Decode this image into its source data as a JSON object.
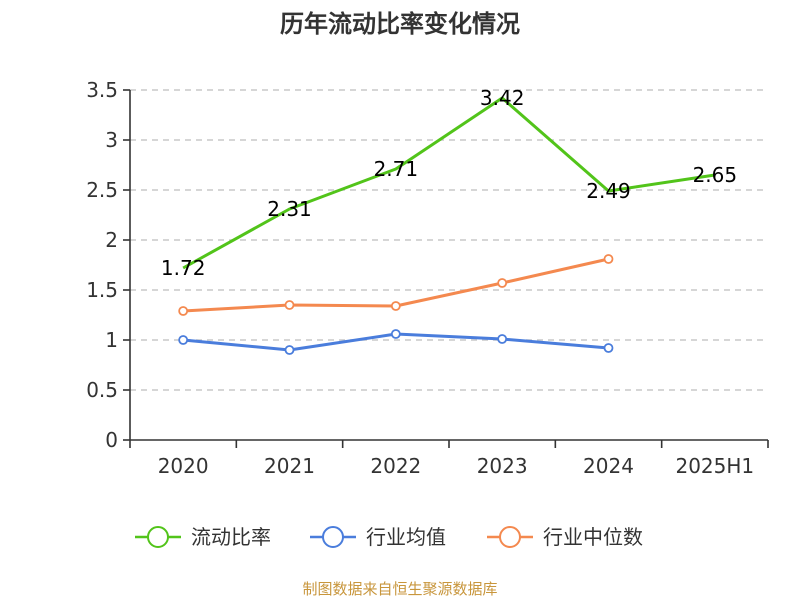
{
  "colors": {
    "current_ratio": "#52c41a",
    "industry_average": "#4a7ddc",
    "industry_median": "#f4894f",
    "source_text": "#c8963c"
  },
  "chart_data": {
    "type": "line",
    "title": "历年流动比率变化情况",
    "xlabel": "",
    "ylabel": "",
    "categories": [
      "2020",
      "2021",
      "2022",
      "2023",
      "2024",
      "2025H1"
    ],
    "ylim": [
      0,
      3.5
    ],
    "yticks": [
      "0",
      "0.5",
      "1",
      "1.5",
      "2",
      "2.5",
      "3",
      "3.5"
    ],
    "grid": true,
    "legend_position": "bottom",
    "series": [
      {
        "name": "流动比率",
        "values": [
          1.72,
          2.31,
          2.71,
          3.42,
          2.49,
          2.65
        ],
        "labels": [
          "1.72",
          "2.31",
          "2.71",
          "3.42",
          "2.49",
          "2.65"
        ],
        "show_labels": true,
        "show_markers": false
      },
      {
        "name": "行业均值",
        "values": [
          1.0,
          0.9,
          1.06,
          1.01,
          0.92,
          null
        ],
        "show_labels": false,
        "show_markers": true
      },
      {
        "name": "行业中位数",
        "values": [
          1.29,
          1.35,
          1.34,
          1.57,
          1.81,
          null
        ],
        "show_labels": false,
        "show_markers": true
      }
    ]
  },
  "source": "制图数据来自恒生聚源数据库"
}
